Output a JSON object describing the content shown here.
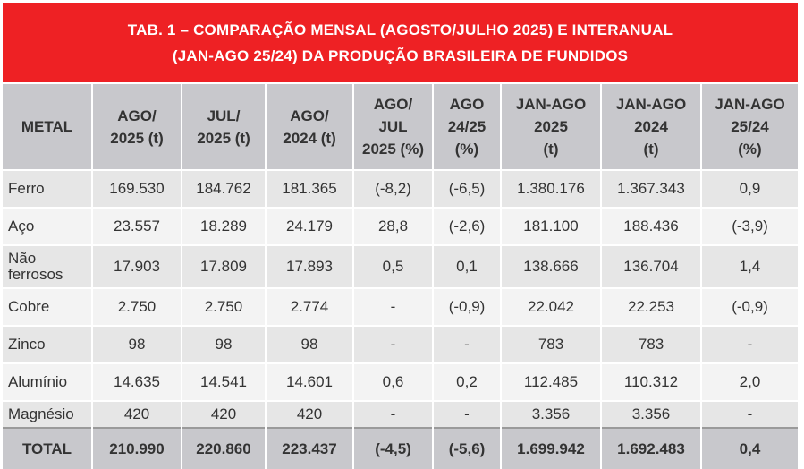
{
  "title": {
    "line1": "TAB. 1 – COMPARAÇÃO MENSAL (AGOSTO/JULHO 2025) E INTERANUAL",
    "line2": "(JAN-AGO 25/24) DA PRODUÇÃO BRASILEIRA DE FUNDIDOS"
  },
  "headers": [
    [
      "METAL"
    ],
    [
      "AGO/",
      "2025 (t)"
    ],
    [
      "JUL/",
      "2025 (t)"
    ],
    [
      "AGO/",
      "2024 (t)"
    ],
    [
      "AGO/",
      "JUL",
      "2025 (%)"
    ],
    [
      "AGO",
      "24/25",
      "(%)"
    ],
    [
      "JAN-AGO",
      "2025",
      "(t)"
    ],
    [
      "JAN-AGO",
      "2024",
      "(t)"
    ],
    [
      "JAN-AGO",
      "25/24",
      "(%)"
    ]
  ],
  "rows": [
    {
      "metal": "Ferro",
      "values": [
        "169.530",
        "184.762",
        "181.365",
        "(-8,2)",
        "(-6,5)",
        "1.380.176",
        "1.367.343",
        "0,9"
      ]
    },
    {
      "metal": "Aço",
      "values": [
        "23.557",
        "18.289",
        "24.179",
        "28,8",
        "(-2,6)",
        "181.100",
        "188.436",
        "(-3,9)"
      ]
    },
    {
      "metal_lines": [
        "Não",
        "ferrosos"
      ],
      "values": [
        "17.903",
        "17.809",
        "17.893",
        "0,5",
        "0,1",
        "138.666",
        "136.704",
        "1,4"
      ]
    },
    {
      "metal": "Cobre",
      "values": [
        "2.750",
        "2.750",
        "2.774",
        "-",
        "(-0,9)",
        "22.042",
        "22.253",
        "(-0,9)"
      ]
    },
    {
      "metal": "Zinco",
      "values": [
        "98",
        "98",
        "98",
        "-",
        "-",
        "783",
        "783",
        "-"
      ]
    },
    {
      "metal": "Alumínio",
      "values": [
        "14.635",
        "14.541",
        "14.601",
        "0,6",
        "0,2",
        "112.485",
        "110.312",
        "2,0"
      ]
    },
    {
      "metal": "Magnésio",
      "values": [
        "420",
        "420",
        "420",
        "-",
        "-",
        "3.356",
        "3.356",
        "-"
      ]
    }
  ],
  "total": {
    "label": "TOTAL",
    "values": [
      "210.990",
      "220.860",
      "223.437",
      "(-4,5)",
      "(-5,6)",
      "1.699.942",
      "1.692.483",
      "0,4"
    ]
  },
  "colors": {
    "title_band": "#ee2124",
    "header_bg": "#c8c8cc",
    "row_odd": "#e6e6e6",
    "row_even": "#f3f3f3"
  }
}
